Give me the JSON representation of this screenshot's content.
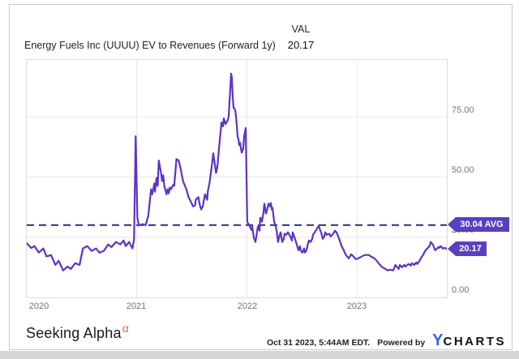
{
  "header": {
    "title": "Energy Fuels Inc (UUUU) EV to Revenues (Forward 1y)",
    "val_label": "VAL",
    "val_value": "20.17"
  },
  "badges": {
    "avg": "30.04 AVG",
    "last": "20.17"
  },
  "axis": {
    "y_ticks": [
      "75.00",
      "50.00",
      "25.00",
      "0.00"
    ],
    "x_ticks": [
      "2020",
      "2021",
      "2022",
      "2023"
    ]
  },
  "footer": {
    "brand": "Seeking Alpha",
    "brand_sup": "α",
    "timestamp": "Oct 31 2023, 5:44AM EDT.",
    "powered_by": "Powered by",
    "ycharts_y": "Y",
    "ycharts_rest": "CHARTS"
  },
  "colors": {
    "line": "#5c33c6",
    "badge": "#5a3fbe",
    "avg_line": "#2e2a7e",
    "alpha_orange": "#e0703a",
    "ycharts_blue": "#3566d6"
  },
  "chart_data": {
    "type": "line",
    "title": "Energy Fuels Inc (UUUU) EV to Revenues (Forward 1y)",
    "series_name": "EV to Revenues (Forward 1y)",
    "xlabel": "",
    "ylabel": "",
    "x_range": [
      2020.0,
      2023.82
    ],
    "ylim": [
      0,
      98.5
    ],
    "y_gridlines": [
      75,
      50,
      25
    ],
    "x_gridlines": [
      2021,
      2022,
      2023
    ],
    "average": 30.04,
    "last_value": 20.17,
    "legend_position": "none",
    "grid": true,
    "points": [
      [
        2020.0,
        22.5
      ],
      [
        2020.04,
        20.5
      ],
      [
        2020.07,
        21.3
      ],
      [
        2020.11,
        18.6
      ],
      [
        2020.15,
        20.3
      ],
      [
        2020.18,
        17.0
      ],
      [
        2020.22,
        17.6
      ],
      [
        2020.26,
        13.5
      ],
      [
        2020.29,
        15.2
      ],
      [
        2020.33,
        11.2
      ],
      [
        2020.37,
        12.8
      ],
      [
        2020.4,
        11.8
      ],
      [
        2020.44,
        14.2
      ],
      [
        2020.48,
        13.5
      ],
      [
        2020.51,
        20.3
      ],
      [
        2020.55,
        21.3
      ],
      [
        2020.59,
        19.3
      ],
      [
        2020.63,
        20.3
      ],
      [
        2020.66,
        18.6
      ],
      [
        2020.7,
        19.3
      ],
      [
        2020.74,
        22.0
      ],
      [
        2020.77,
        20.9
      ],
      [
        2020.81,
        23.0
      ],
      [
        2020.85,
        22.0
      ],
      [
        2020.88,
        23.6
      ],
      [
        2020.9,
        21.3
      ],
      [
        2020.93,
        23.0
      ],
      [
        2020.96,
        20.3
      ],
      [
        2020.975,
        24.0
      ],
      [
        2020.99,
        66.9
      ],
      [
        2021.005,
        33.0
      ],
      [
        2021.02,
        29.8
      ],
      [
        2021.05,
        30.4
      ],
      [
        2021.08,
        30.0
      ],
      [
        2021.105,
        34.0
      ],
      [
        2021.13,
        44.9
      ],
      [
        2021.14,
        42.8
      ],
      [
        2021.16,
        47.3
      ],
      [
        2021.165,
        43.9
      ],
      [
        2021.18,
        49.6
      ],
      [
        2021.19,
        46.3
      ],
      [
        2021.2,
        56.8
      ],
      [
        2021.22,
        51.7
      ],
      [
        2021.23,
        48.3
      ],
      [
        2021.24,
        50.7
      ],
      [
        2021.25,
        46.3
      ],
      [
        2021.27,
        42.8
      ],
      [
        2021.28,
        44.9
      ],
      [
        2021.29,
        43.2
      ],
      [
        2021.3,
        45.6
      ],
      [
        2021.31,
        44.9
      ],
      [
        2021.33,
        46.6
      ],
      [
        2021.34,
        46.3
      ],
      [
        2021.36,
        57.4
      ],
      [
        2021.38,
        56.8
      ],
      [
        2021.39,
        55.1
      ],
      [
        2021.4,
        53.0
      ],
      [
        2021.41,
        50.7
      ],
      [
        2021.42,
        48.3
      ],
      [
        2021.45,
        44.9
      ],
      [
        2021.47,
        41.6
      ],
      [
        2021.5,
        38.9
      ],
      [
        2021.51,
        37.8
      ],
      [
        2021.53,
        38.2
      ],
      [
        2021.535,
        40.5
      ],
      [
        2021.56,
        41.6
      ],
      [
        2021.57,
        38.9
      ],
      [
        2021.585,
        36.5
      ],
      [
        2021.6,
        37.8
      ],
      [
        2021.61,
        40.5
      ],
      [
        2021.62,
        42.8
      ],
      [
        2021.64,
        40.5
      ],
      [
        2021.645,
        43.9
      ],
      [
        2021.66,
        47.3
      ],
      [
        2021.67,
        50.7
      ],
      [
        2021.68,
        54.1
      ],
      [
        2021.695,
        59.8
      ],
      [
        2021.71,
        55.1
      ],
      [
        2021.72,
        51.7
      ],
      [
        2021.732,
        54.1
      ],
      [
        2021.747,
        62.0
      ],
      [
        2021.769,
        72.6
      ],
      [
        2021.784,
        71.0
      ],
      [
        2021.791,
        74.3
      ],
      [
        2021.806,
        72.0
      ],
      [
        2021.82,
        73.0
      ],
      [
        2021.828,
        73.7
      ],
      [
        2021.835,
        75.3
      ],
      [
        2021.842,
        81.1
      ],
      [
        2021.85,
        86.8
      ],
      [
        2021.857,
        92.9
      ],
      [
        2021.864,
        91.2
      ],
      [
        2021.872,
        83.0
      ],
      [
        2021.879,
        78.7
      ],
      [
        2021.887,
        78.4
      ],
      [
        2021.894,
        77.7
      ],
      [
        2021.901,
        75.3
      ],
      [
        2021.909,
        71.0
      ],
      [
        2021.916,
        66.6
      ],
      [
        2021.923,
        65.9
      ],
      [
        2021.931,
        63.2
      ],
      [
        2021.938,
        64.2
      ],
      [
        2021.953,
        60.1
      ],
      [
        2021.967,
        61.8
      ],
      [
        2021.975,
        66.6
      ],
      [
        2021.99,
        70.3
      ],
      [
        2022.004,
        31.4
      ],
      [
        2022.027,
        29.4
      ],
      [
        2022.041,
        28.0
      ],
      [
        2022.049,
        29.4
      ],
      [
        2022.064,
        24.7
      ],
      [
        2022.078,
        23.0
      ],
      [
        2022.086,
        25.3
      ],
      [
        2022.1,
        29.4
      ],
      [
        2022.115,
        27.7
      ],
      [
        2022.122,
        33.1
      ],
      [
        2022.137,
        31.4
      ],
      [
        2022.152,
        35.5
      ],
      [
        2022.159,
        38.9
      ],
      [
        2022.174,
        34.8
      ],
      [
        2022.189,
        37.2
      ],
      [
        2022.196,
        38.9
      ],
      [
        2022.211,
        37.8
      ],
      [
        2022.218,
        39.2
      ],
      [
        2022.226,
        36.5
      ],
      [
        2022.233,
        37.2
      ],
      [
        2022.248,
        31.4
      ],
      [
        2022.262,
        29.4
      ],
      [
        2022.27,
        28.0
      ],
      [
        2022.284,
        23.0
      ],
      [
        2022.299,
        26.0
      ],
      [
        2022.307,
        27.0
      ],
      [
        2022.321,
        23.0
      ],
      [
        2022.336,
        24.3
      ],
      [
        2022.343,
        26.4
      ],
      [
        2022.358,
        26.0
      ],
      [
        2022.373,
        27.0
      ],
      [
        2022.38,
        26.4
      ],
      [
        2022.395,
        25.3
      ],
      [
        2022.41,
        23.6
      ],
      [
        2022.417,
        27.0
      ],
      [
        2022.44,
        24.0
      ],
      [
        2022.469,
        19.6
      ],
      [
        2022.483,
        21.3
      ],
      [
        2022.491,
        19.3
      ],
      [
        2022.505,
        18.6
      ],
      [
        2022.52,
        20.3
      ],
      [
        2022.528,
        18.6
      ],
      [
        2022.542,
        19.6
      ],
      [
        2022.557,
        22.6
      ],
      [
        2022.564,
        23.6
      ],
      [
        2022.579,
        23.0
      ],
      [
        2022.594,
        24.3
      ],
      [
        2022.601,
        26.0
      ],
      [
        2022.616,
        27.0
      ],
      [
        2022.631,
        28.0
      ],
      [
        2022.638,
        28.7
      ],
      [
        2022.653,
        29.7
      ],
      [
        2022.668,
        27.7
      ],
      [
        2022.675,
        27.0
      ],
      [
        2022.69,
        24.3
      ],
      [
        2022.704,
        25.3
      ],
      [
        2022.712,
        27.0
      ],
      [
        2022.726,
        26.0
      ],
      [
        2022.749,
        26.4
      ],
      [
        2022.763,
        25.3
      ],
      [
        2022.786,
        26.5
      ],
      [
        2022.8,
        27.7
      ],
      [
        2022.815,
        27.0
      ],
      [
        2022.837,
        24.5
      ],
      [
        2022.859,
        21.5
      ],
      [
        2022.881,
        19.5
      ],
      [
        2022.896,
        17.9
      ],
      [
        2022.911,
        17.0
      ],
      [
        2022.926,
        16.2
      ],
      [
        2022.948,
        17.9
      ],
      [
        2022.97,
        17.0
      ],
      [
        2022.985,
        16.0
      ],
      [
        2023.0,
        15.9
      ],
      [
        2023.04,
        16.9
      ],
      [
        2023.07,
        17.6
      ],
      [
        2023.11,
        17.6
      ],
      [
        2023.13,
        16.9
      ],
      [
        2023.16,
        16.2
      ],
      [
        2023.18,
        15.2
      ],
      [
        2023.21,
        13.5
      ],
      [
        2023.23,
        12.5
      ],
      [
        2023.26,
        11.8
      ],
      [
        2023.28,
        11.2
      ],
      [
        2023.3,
        11.5
      ],
      [
        2023.33,
        11.2
      ],
      [
        2023.35,
        13.5
      ],
      [
        2023.38,
        11.8
      ],
      [
        2023.39,
        13.5
      ],
      [
        2023.41,
        12.5
      ],
      [
        2023.43,
        13.5
      ],
      [
        2023.44,
        12.8
      ],
      [
        2023.47,
        13.9
      ],
      [
        2023.49,
        13.2
      ],
      [
        2023.5,
        14.2
      ],
      [
        2023.52,
        13.5
      ],
      [
        2023.54,
        14.5
      ],
      [
        2023.55,
        13.9
      ],
      [
        2023.57,
        15.2
      ],
      [
        2023.58,
        16.2
      ],
      [
        2023.6,
        17.5
      ],
      [
        2023.62,
        19.3
      ],
      [
        2023.64,
        20.3
      ],
      [
        2023.66,
        21.3
      ],
      [
        2023.67,
        23.0
      ],
      [
        2023.69,
        22.0
      ],
      [
        2023.7,
        20.9
      ],
      [
        2023.71,
        19.6
      ],
      [
        2023.73,
        20.3
      ],
      [
        2023.74,
        20.9
      ],
      [
        2023.75,
        20.6
      ],
      [
        2023.76,
        21.3
      ],
      [
        2023.77,
        20.9
      ],
      [
        2023.78,
        20.3
      ],
      [
        2023.8,
        20.5
      ],
      [
        2023.817,
        20.17
      ]
    ]
  }
}
